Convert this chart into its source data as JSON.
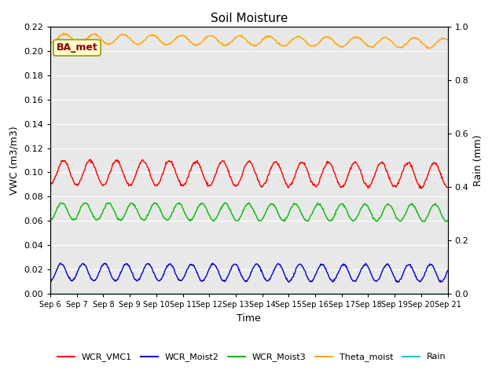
{
  "title": "Soil Moisture",
  "xlabel": "Time",
  "ylabel_left": "VWC (m3/m3)",
  "ylabel_right": "Rain (mm)",
  "annotation": "BA_met",
  "ylim_left": [
    0.0,
    0.22
  ],
  "ylim_right": [
    0.0,
    1.0
  ],
  "yticks_left": [
    0.0,
    0.02,
    0.04,
    0.06,
    0.08,
    0.1,
    0.12,
    0.14,
    0.16,
    0.18,
    0.2,
    0.22
  ],
  "yticks_right_vals": [
    0.0,
    0.2,
    0.4,
    0.6,
    0.8,
    1.0
  ],
  "yticks_right_labels": [
    "0.0",
    "0.2",
    "0.4",
    "0.6",
    "0.8",
    "1.0"
  ],
  "background_color": "#e8e8e8",
  "grid_color": "#ffffff",
  "colors": {
    "WCR_VMC1": "#ff0000",
    "WCR_Moist2": "#0000cc",
    "WCR_Moist3": "#00bb00",
    "Theta_moist": "#ffa500",
    "Rain": "#00cccc"
  },
  "legend_entries": [
    "WCR_VMC1",
    "WCR_Moist2",
    "WCR_Moist3",
    "Theta_moist",
    "Rain"
  ],
  "n_days": 15,
  "pts_per_day": 48,
  "annotation_color": "#8b0000",
  "annotation_bg": "#ffffcc",
  "annotation_edge": "#999900"
}
